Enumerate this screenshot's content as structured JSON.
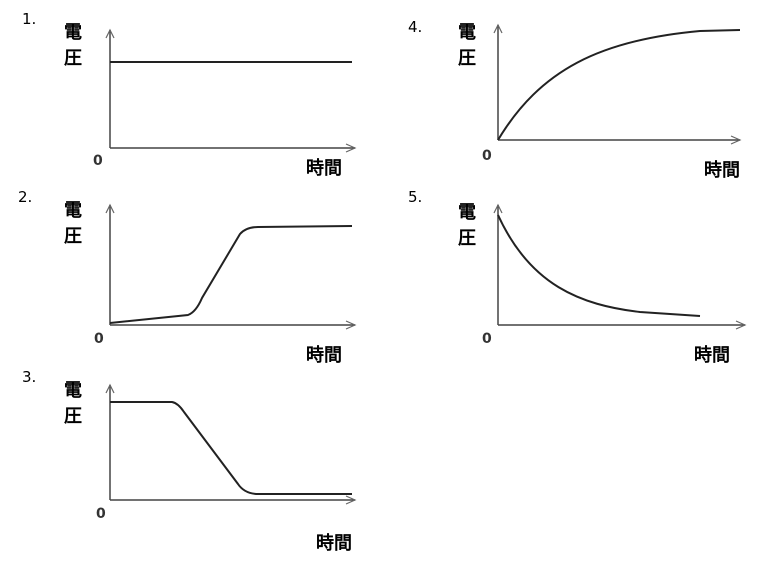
{
  "panels": [
    {
      "number": "1.",
      "y_label": "電圧",
      "origin": "0",
      "x_label": "時間"
    },
    {
      "number": "2.",
      "y_label": "電圧",
      "origin": "0",
      "x_label": "時間"
    },
    {
      "number": "3.",
      "y_label": "電圧",
      "origin": "0",
      "x_label": "時間"
    },
    {
      "number": "4.",
      "y_label": "電圧",
      "origin": "0",
      "x_label": "時間"
    },
    {
      "number": "5.",
      "y_label": "電圧",
      "origin": "0",
      "x_label": "時間"
    }
  ]
}
